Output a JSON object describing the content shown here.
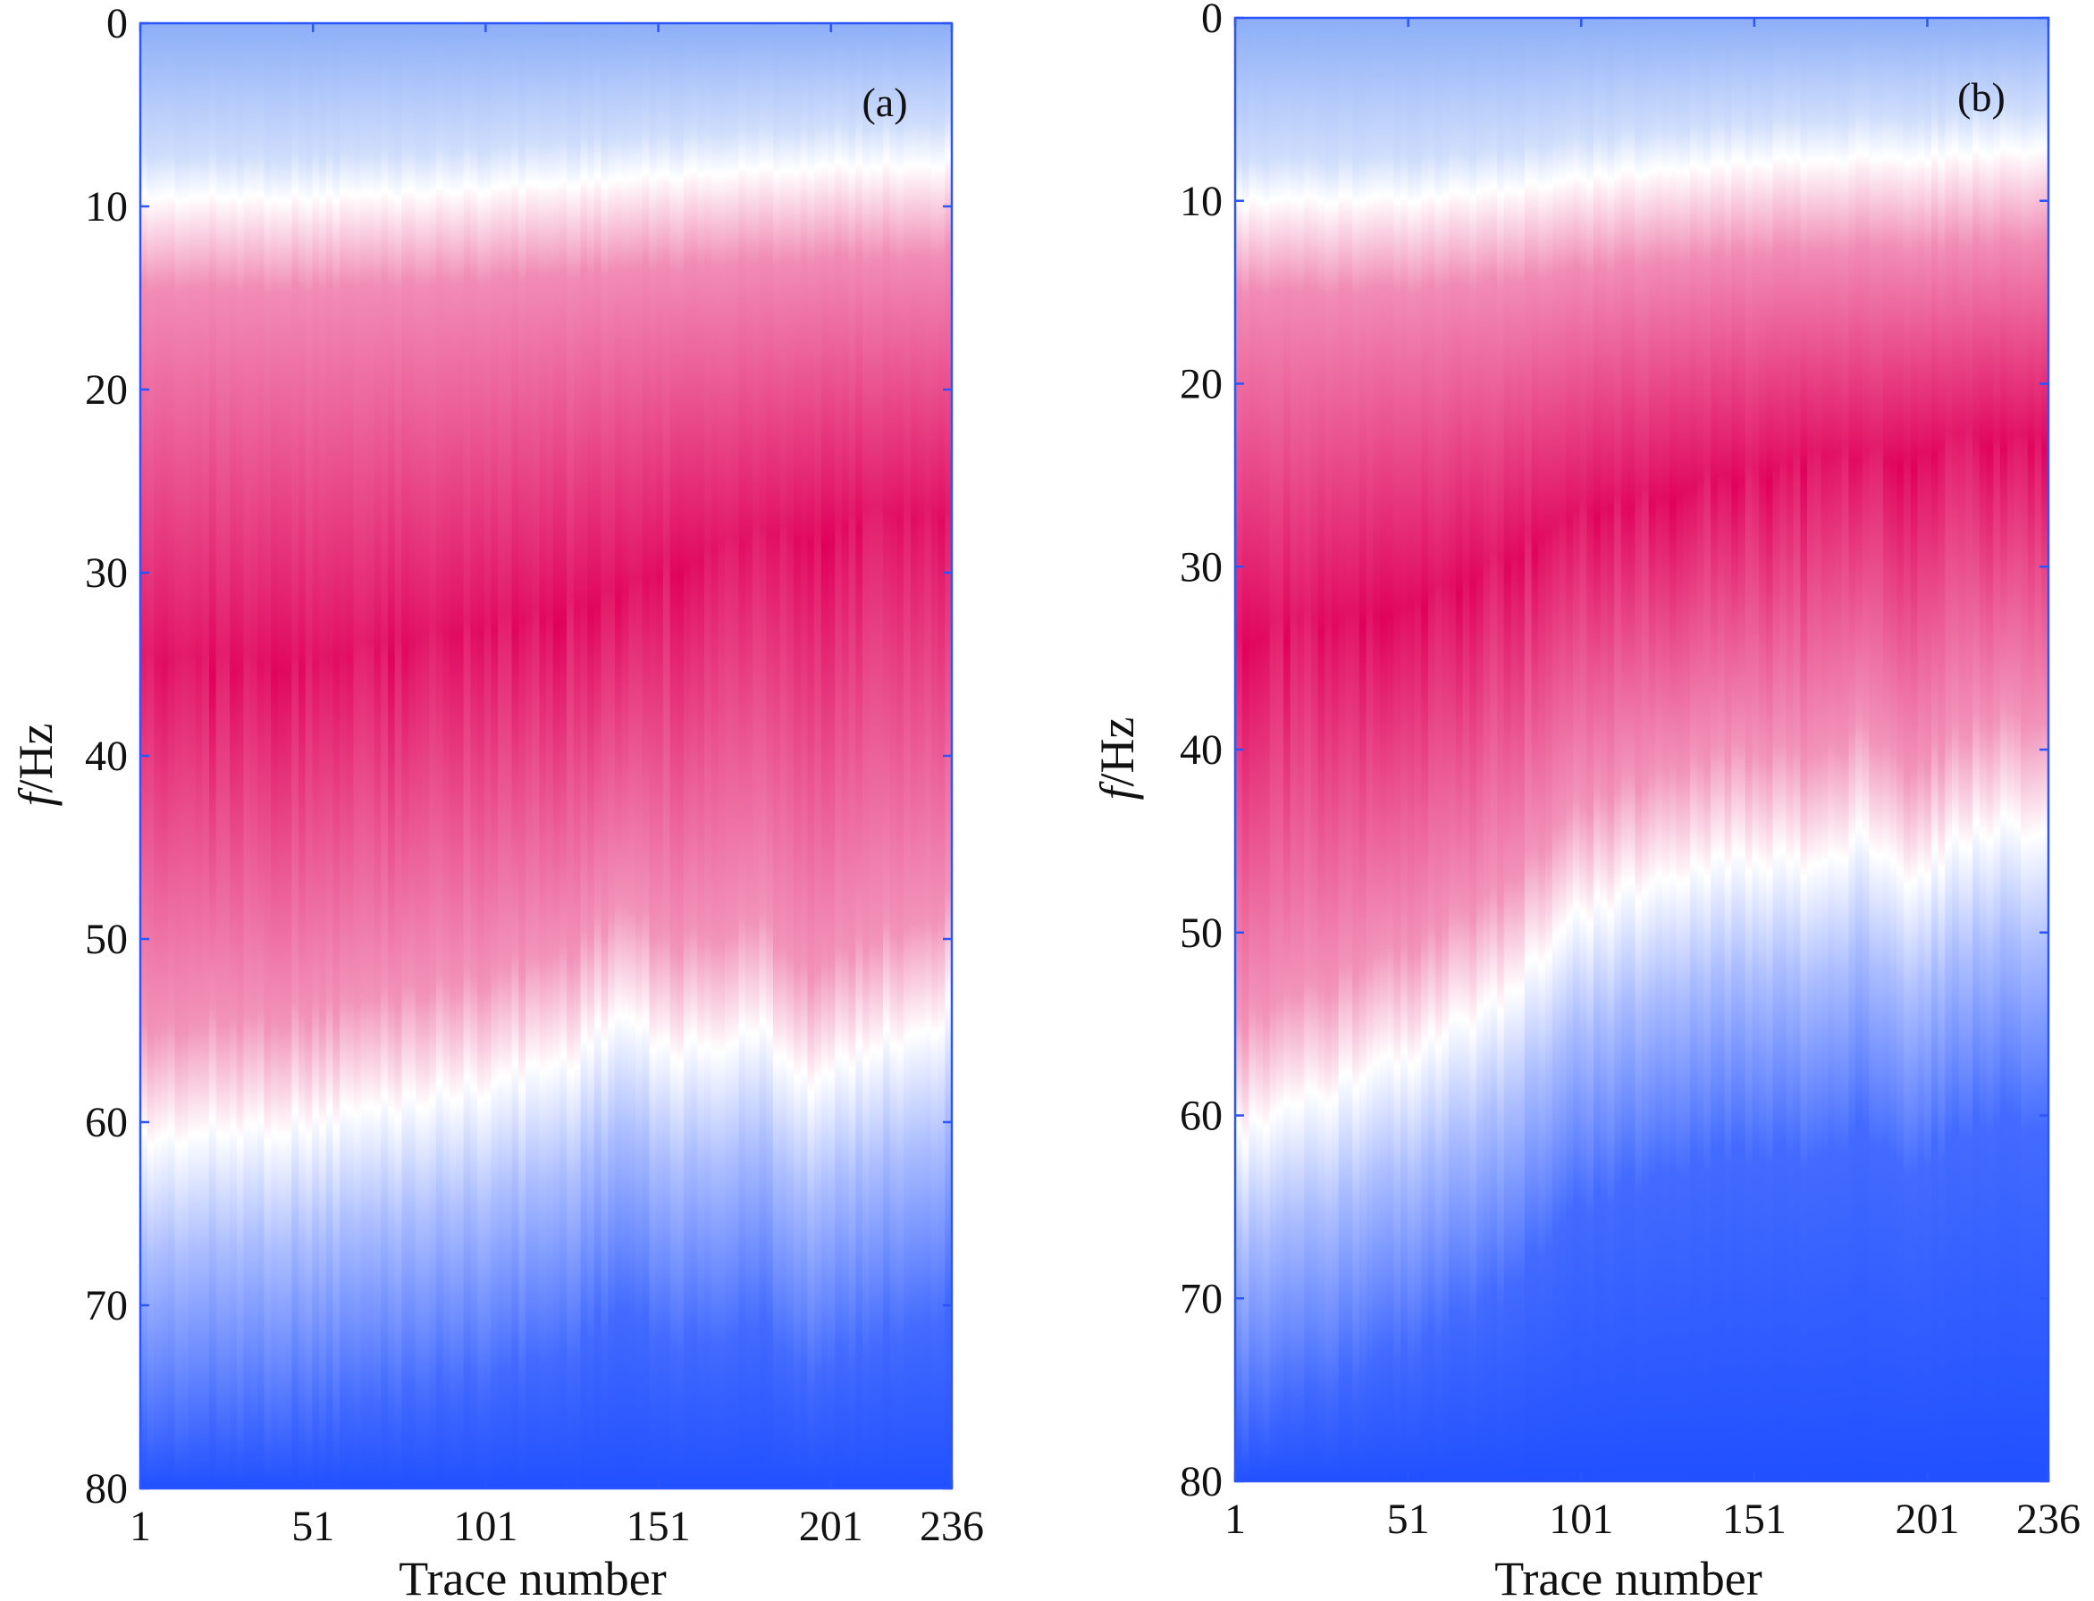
{
  "colors": {
    "low": "#1a4bff",
    "mid": "#ffffff",
    "high": "#e0005a",
    "axis": "#2a55ff",
    "text": "#111111"
  },
  "chart_data": [
    {
      "type": "heatmap",
      "panel_label": "(a)",
      "xlabel": "Trace number",
      "ylabel_italic": "f",
      "ylabel_rest": "/Hz",
      "xlim": [
        1,
        236
      ],
      "ylim": [
        0,
        80
      ],
      "y_inverted": true,
      "x_ticks": [
        "1",
        "51",
        "101",
        "151",
        "201",
        "236"
      ],
      "x_tick_values": [
        1,
        51,
        101,
        151,
        201,
        236
      ],
      "y_ticks": [
        "0",
        "10",
        "20",
        "30",
        "40",
        "50",
        "60",
        "70",
        "80"
      ],
      "y_tick_values": [
        0,
        10,
        20,
        30,
        40,
        50,
        60,
        70,
        80
      ],
      "colorscale": "blue-white-red (low to high amplitude)",
      "trace_samples": [
        1,
        26,
        51,
        76,
        101,
        126,
        141,
        151,
        166,
        181,
        196,
        211,
        226,
        236
      ],
      "upper_white_boundary_hz": [
        9.5,
        9.5,
        9.5,
        9.3,
        9.0,
        8.7,
        8.5,
        8.4,
        8.2,
        8.0,
        7.9,
        7.8,
        7.7,
        7.6
      ],
      "peak_frequency_hz": [
        35,
        35,
        35,
        34,
        33,
        32,
        31,
        30,
        29,
        28,
        28,
        27,
        27,
        27
      ],
      "lower_white_boundary_hz": [
        61,
        60.5,
        60,
        59,
        58,
        56.5,
        54,
        56,
        56,
        55,
        58,
        56,
        55,
        54
      ]
    },
    {
      "type": "heatmap",
      "panel_label": "(b)",
      "xlabel": "Trace number",
      "ylabel_italic": "f",
      "ylabel_rest": "/Hz",
      "xlim": [
        1,
        236
      ],
      "ylim": [
        0,
        80
      ],
      "y_inverted": true,
      "x_ticks": [
        "1",
        "51",
        "101",
        "151",
        "201",
        "236"
      ],
      "x_tick_values": [
        1,
        51,
        101,
        151,
        201,
        236
      ],
      "y_ticks": [
        "0",
        "10",
        "20",
        "30",
        "40",
        "50",
        "60",
        "70",
        "80"
      ],
      "y_tick_values": [
        0,
        10,
        20,
        30,
        40,
        50,
        60,
        70,
        80
      ],
      "colorscale": "blue-white-red (low to high amplitude)",
      "trace_samples": [
        1,
        26,
        51,
        76,
        101,
        126,
        141,
        151,
        166,
        181,
        196,
        211,
        226,
        236
      ],
      "upper_white_boundary_hz": [
        10,
        10,
        10,
        9.5,
        8.8,
        8.3,
        8.0,
        7.9,
        7.8,
        7.7,
        7.7,
        7.5,
        7.3,
        7.2
      ],
      "peak_frequency_hz": [
        34,
        33,
        32,
        30,
        27,
        26,
        25,
        25,
        24,
        24,
        24,
        23,
        23,
        23
      ],
      "lower_white_boundary_hz": [
        61,
        59,
        57,
        54,
        49,
        47,
        46,
        46,
        46.5,
        45,
        47,
        45,
        44,
        45
      ]
    }
  ]
}
